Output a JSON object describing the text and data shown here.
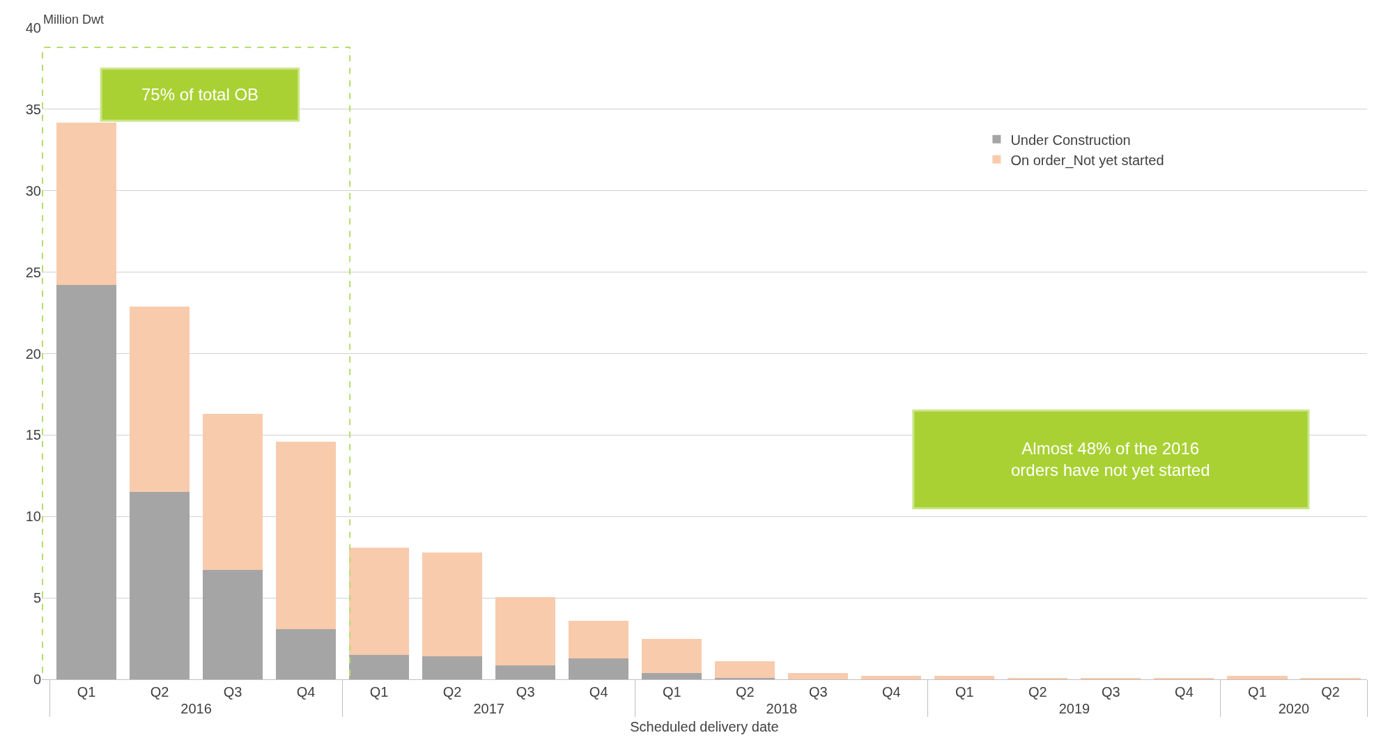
{
  "chart_data": {
    "type": "bar",
    "stacked": true,
    "xlabel": "Scheduled delivery date",
    "ylabel": "Million Dwt",
    "categories": [
      "Q1",
      "Q2",
      "Q3",
      "Q4",
      "Q1",
      "Q2",
      "Q3",
      "Q4",
      "Q1",
      "Q2",
      "Q3",
      "Q4",
      "Q1",
      "Q2",
      "Q3",
      "Q4",
      "Q1",
      "Q2"
    ],
    "series": [
      {
        "name": "Under Construction",
        "color": "#a5a5a5",
        "values": [
          24.2,
          11.5,
          6.7,
          3.1,
          1.5,
          1.4,
          0.85,
          1.3,
          0.4,
          0.1,
          0,
          0,
          0,
          0,
          0,
          0,
          0,
          0
        ]
      },
      {
        "name": "On order_Not yet started",
        "color": "#f8cbad",
        "values": [
          10.0,
          11.4,
          9.6,
          11.5,
          6.6,
          6.4,
          4.2,
          2.3,
          2.1,
          1.0,
          0.4,
          0.2,
          0.2,
          0.1,
          0.1,
          0.1,
          0.2,
          0.1
        ]
      }
    ],
    "annotations": [
      "2016",
      "2017",
      "2018",
      "2019",
      "2020",
      "75% of total OB",
      "Almost 48% of the 2016 orders have not yet started"
    ],
    "ylim": [
      0,
      40
    ],
    "yticks": [
      0,
      5,
      10,
      15,
      20,
      25,
      30,
      35,
      40
    ],
    "grid": "y",
    "legend": "top right"
  }
}
